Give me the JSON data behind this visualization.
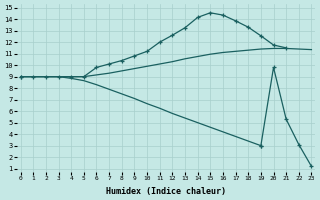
{
  "xlabel": "Humidex (Indice chaleur)",
  "bg_color": "#c5e8e5",
  "grid_color": "#a8cfcc",
  "line_color": "#1a6060",
  "xlim": [
    -0.3,
    23.3
  ],
  "ylim": [
    0.7,
    15.3
  ],
  "xticks": [
    0,
    1,
    2,
    3,
    4,
    5,
    6,
    7,
    8,
    9,
    10,
    11,
    12,
    13,
    14,
    15,
    16,
    17,
    18,
    19,
    20,
    21,
    22,
    23
  ],
  "yticks": [
    1,
    2,
    3,
    4,
    5,
    6,
    7,
    8,
    9,
    10,
    11,
    12,
    13,
    14,
    15
  ],
  "curve_peak_x": [
    0,
    1,
    2,
    3,
    4,
    5,
    6,
    7,
    8,
    9,
    10,
    11,
    12,
    13,
    14,
    15,
    16,
    17,
    18,
    19,
    20,
    21
  ],
  "curve_peak_y": [
    9.0,
    9.0,
    9.0,
    9.0,
    9.0,
    9.0,
    9.8,
    10.1,
    10.4,
    10.8,
    11.2,
    12.0,
    12.6,
    13.25,
    14.15,
    14.55,
    14.35,
    13.85,
    13.3,
    12.55,
    11.75,
    11.5
  ],
  "curve_mid_x": [
    0,
    1,
    2,
    3,
    4,
    5,
    6,
    7,
    8,
    9,
    10,
    11,
    12,
    13,
    14,
    15,
    16,
    17,
    18,
    19,
    20,
    21,
    22,
    23
  ],
  "curve_mid_y": [
    9.0,
    9.0,
    9.0,
    9.0,
    9.0,
    9.0,
    9.15,
    9.3,
    9.5,
    9.7,
    9.9,
    10.1,
    10.3,
    10.55,
    10.75,
    10.95,
    11.1,
    11.2,
    11.3,
    11.4,
    11.45,
    11.45,
    11.4,
    11.35
  ],
  "curve_low_x": [
    0,
    1,
    2,
    3,
    4,
    5,
    6,
    7,
    8,
    9,
    10,
    11,
    12,
    13,
    14,
    15,
    16,
    17,
    18,
    19,
    20,
    21,
    22,
    23
  ],
  "curve_low_y": [
    9.0,
    9.0,
    9.0,
    9.0,
    8.85,
    8.65,
    8.3,
    7.9,
    7.5,
    7.1,
    6.65,
    6.25,
    5.8,
    5.4,
    5.0,
    4.6,
    4.2,
    3.8,
    3.4,
    3.0,
    9.8,
    5.3,
    3.1,
    1.2
  ]
}
